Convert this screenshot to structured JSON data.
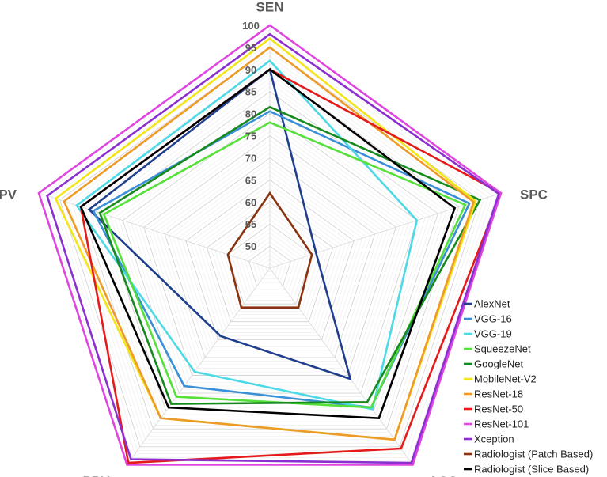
{
  "chart_data": {
    "type": "radar",
    "axes": [
      "SEN",
      "SPC",
      "ACC",
      "PPV",
      "NPV"
    ],
    "rlim": [
      45,
      100
    ],
    "grid": true,
    "ticks": [
      50,
      55,
      60,
      65,
      70,
      75,
      80,
      85,
      90,
      95,
      100
    ],
    "tick_labels": [
      "50",
      "55",
      "60",
      "65",
      "70",
      "75",
      "80",
      "85",
      "90",
      "95",
      "100"
    ],
    "legend_position": "bottom-right",
    "series": [
      {
        "name": "AlexNet",
        "color": "#1f3e8c",
        "values": [
          90,
          56,
          76,
          64,
          88
        ]
      },
      {
        "name": "VGG-16",
        "color": "#3a8fd6",
        "values": [
          80.5,
          92.5,
          84,
          78,
          87
        ]
      },
      {
        "name": "VGG-19",
        "color": "#4dd9e6",
        "values": [
          92,
          80,
          84.5,
          74,
          91
        ]
      },
      {
        "name": "SqueezeNet",
        "color": "#55e03a",
        "values": [
          78,
          91.5,
          84,
          81,
          84.5
        ]
      },
      {
        "name": "GoogleNet",
        "color": "#178a1e",
        "values": [
          81.5,
          95,
          82.5,
          83,
          85.5
        ]
      },
      {
        "name": "MobileNet-V2",
        "color": "#f2e51a",
        "values": [
          97,
          94,
          93,
          87,
          96
        ]
      },
      {
        "name": "ResNet-18",
        "color": "#ee9a28",
        "values": [
          95,
          93.5,
          93,
          87,
          94
        ]
      },
      {
        "name": "ResNet-50",
        "color": "#e51b1b",
        "values": [
          90,
          100,
          95.5,
          99.5,
          90
        ]
      },
      {
        "name": "ResNet-101",
        "color": "#df46df",
        "values": [
          100,
          100,
          100,
          100,
          100
        ]
      },
      {
        "name": "Xception",
        "color": "#8b2fcf",
        "values": [
          98,
          99.5,
          99.5,
          98.5,
          98
        ]
      },
      {
        "name": "Radiologist (Patch Based)",
        "color": "#8a3310",
        "values": [
          62,
          55,
          56,
          56,
          55
        ]
      },
      {
        "name": "Radiologist (Slice Based)",
        "color": "#000000",
        "values": [
          90,
          89,
          87,
          84,
          90
        ]
      }
    ]
  }
}
